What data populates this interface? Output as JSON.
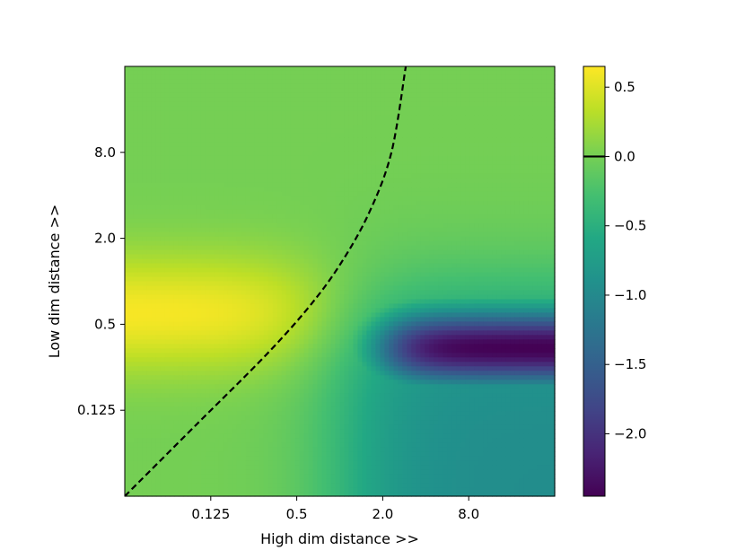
{
  "chart_data": {
    "type": "heatmap",
    "title": "",
    "xlabel": "High dim distance >>",
    "ylabel": "Low dim distance >>",
    "x_scale": "log2",
    "y_scale": "log2",
    "xlim": [
      0.03125,
      32
    ],
    "ylim": [
      0.03125,
      32
    ],
    "x_ticks": [
      0.125,
      0.5,
      2.0,
      8.0
    ],
    "x_tick_labels": [
      "0.125",
      "0.5",
      "2.0",
      "8.0"
    ],
    "y_ticks": [
      0.125,
      0.5,
      2.0,
      8.0
    ],
    "y_tick_labels": [
      "0.125",
      "0.5",
      "2.0",
      "8.0"
    ],
    "colormap": "viridis",
    "color_range": [
      -2.45,
      0.65
    ],
    "colorbar": {
      "ticks": [
        0.5,
        0.0,
        -0.5,
        -1.0,
        -1.5,
        -2.0
      ],
      "tick_labels": [
        "0.5",
        "0.0",
        "−0.5",
        "−1.0",
        "−1.5",
        "−2.0"
      ],
      "zero_marker": 0.0
    },
    "features": [
      {
        "name": "positive band",
        "low_dim_distance": 0.6,
        "high_dim_range": [
          0.03125,
          0.7
        ],
        "peak_value": 0.65
      },
      {
        "name": "negative trough",
        "low_dim_distance": 0.35,
        "high_dim_range": [
          2.0,
          32
        ],
        "min_value": -2.45
      }
    ],
    "zero_contour": {
      "style": "dashed",
      "color": "#000000",
      "points": [
        {
          "x": 0.03125,
          "y": 0.03125
        },
        {
          "x": 0.1,
          "y": 0.1
        },
        {
          "x": 0.3,
          "y": 0.3
        },
        {
          "x": 0.6,
          "y": 0.65
        },
        {
          "x": 1.0,
          "y": 1.3
        },
        {
          "x": 1.6,
          "y": 3.0
        },
        {
          "x": 2.3,
          "y": 8.0
        },
        {
          "x": 2.9,
          "y": 32
        }
      ]
    }
  }
}
